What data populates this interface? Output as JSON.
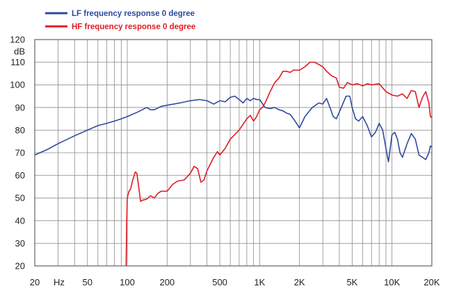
{
  "chart_data": {
    "type": "line",
    "title": "",
    "xlabel": "Hz",
    "ylabel": "dB",
    "x_scale": "log",
    "xlim": [
      20,
      20000
    ],
    "ylim": [
      20,
      120
    ],
    "grid": true,
    "legend_position": "top-left",
    "x_ticks": [
      {
        "value": 20,
        "label": "20"
      },
      {
        "value": 50,
        "label": "50"
      },
      {
        "value": 100,
        "label": "100"
      },
      {
        "value": 200,
        "label": "200"
      },
      {
        "value": 500,
        "label": "500"
      },
      {
        "value": 1000,
        "label": "1K"
      },
      {
        "value": 2000,
        "label": "2K"
      },
      {
        "value": 5000,
        "label": "5K"
      },
      {
        "value": 10000,
        "label": "10K"
      },
      {
        "value": 20000,
        "label": "20K"
      }
    ],
    "y_ticks": [
      20,
      30,
      40,
      50,
      60,
      70,
      80,
      90,
      100,
      110,
      120
    ],
    "series": [
      {
        "name": "LF frequency response 0 degree",
        "color": "#2e4a9e",
        "points": [
          [
            20,
            69
          ],
          [
            25,
            71.5
          ],
          [
            30,
            74
          ],
          [
            40,
            77.5
          ],
          [
            50,
            80
          ],
          [
            60,
            82
          ],
          [
            70,
            83
          ],
          [
            80,
            84
          ],
          [
            90,
            85
          ],
          [
            100,
            86
          ],
          [
            120,
            88
          ],
          [
            140,
            90
          ],
          [
            150,
            89
          ],
          [
            160,
            89
          ],
          [
            180,
            90.5
          ],
          [
            200,
            91
          ],
          [
            250,
            92
          ],
          [
            300,
            93
          ],
          [
            350,
            93.5
          ],
          [
            400,
            93
          ],
          [
            450,
            91.5
          ],
          [
            500,
            93
          ],
          [
            550,
            92.5
          ],
          [
            600,
            94.5
          ],
          [
            650,
            95
          ],
          [
            700,
            93.5
          ],
          [
            750,
            92
          ],
          [
            800,
            94
          ],
          [
            850,
            93
          ],
          [
            900,
            94
          ],
          [
            950,
            93.5
          ],
          [
            1000,
            93.5
          ],
          [
            1100,
            90
          ],
          [
            1200,
            89.5
          ],
          [
            1300,
            90
          ],
          [
            1400,
            89
          ],
          [
            1500,
            88.5
          ],
          [
            1600,
            87.5
          ],
          [
            1700,
            87
          ],
          [
            1800,
            85
          ],
          [
            1900,
            83
          ],
          [
            2000,
            81
          ],
          [
            2200,
            86
          ],
          [
            2500,
            90
          ],
          [
            2800,
            92
          ],
          [
            3000,
            91.5
          ],
          [
            3200,
            94
          ],
          [
            3400,
            90
          ],
          [
            3600,
            86
          ],
          [
            3800,
            85
          ],
          [
            4000,
            88
          ],
          [
            4500,
            95
          ],
          [
            4800,
            95
          ],
          [
            5000,
            90
          ],
          [
            5300,
            85
          ],
          [
            5600,
            84
          ],
          [
            6000,
            86
          ],
          [
            6500,
            82
          ],
          [
            7000,
            77
          ],
          [
            7500,
            79
          ],
          [
            8000,
            83
          ],
          [
            8500,
            80
          ],
          [
            9000,
            72
          ],
          [
            9400,
            66
          ],
          [
            9700,
            72
          ],
          [
            10000,
            78
          ],
          [
            10500,
            79
          ],
          [
            11000,
            76
          ],
          [
            11500,
            70
          ],
          [
            12000,
            68
          ],
          [
            13000,
            74
          ],
          [
            14000,
            78.5
          ],
          [
            15000,
            76
          ],
          [
            16000,
            69
          ],
          [
            17000,
            68
          ],
          [
            18000,
            67
          ],
          [
            19000,
            70
          ],
          [
            19500,
            73
          ],
          [
            20000,
            72.5
          ]
        ]
      },
      {
        "name": "HF frequency response 0 degree",
        "color": "#e01b24",
        "points": [
          [
            98,
            20
          ],
          [
            99,
            40
          ],
          [
            100,
            50
          ],
          [
            103,
            53
          ],
          [
            106,
            54
          ],
          [
            110,
            58
          ],
          [
            115,
            61.5
          ],
          [
            118,
            61
          ],
          [
            122,
            55
          ],
          [
            126,
            48.5
          ],
          [
            130,
            49
          ],
          [
            140,
            49.5
          ],
          [
            150,
            51
          ],
          [
            160,
            50
          ],
          [
            170,
            52
          ],
          [
            180,
            53
          ],
          [
            200,
            53
          ],
          [
            220,
            56
          ],
          [
            240,
            57.5
          ],
          [
            270,
            58
          ],
          [
            300,
            61
          ],
          [
            320,
            64
          ],
          [
            340,
            63
          ],
          [
            360,
            57
          ],
          [
            380,
            58
          ],
          [
            400,
            62
          ],
          [
            450,
            68
          ],
          [
            480,
            70.5
          ],
          [
            500,
            69
          ],
          [
            550,
            72
          ],
          [
            600,
            76
          ],
          [
            700,
            80
          ],
          [
            800,
            85
          ],
          [
            850,
            86.5
          ],
          [
            900,
            84
          ],
          [
            950,
            86
          ],
          [
            1000,
            89
          ],
          [
            1050,
            90
          ],
          [
            1100,
            92
          ],
          [
            1200,
            97
          ],
          [
            1300,
            101
          ],
          [
            1400,
            103
          ],
          [
            1500,
            106
          ],
          [
            1600,
            106
          ],
          [
            1700,
            105.5
          ],
          [
            1800,
            106.5
          ],
          [
            2000,
            106.5
          ],
          [
            2200,
            108
          ],
          [
            2400,
            110
          ],
          [
            2600,
            110
          ],
          [
            2800,
            109
          ],
          [
            3000,
            108
          ],
          [
            3200,
            106
          ],
          [
            3500,
            104
          ],
          [
            3800,
            103
          ],
          [
            4000,
            99
          ],
          [
            4300,
            98.5
          ],
          [
            4600,
            101
          ],
          [
            5000,
            100
          ],
          [
            5500,
            100.5
          ],
          [
            6000,
            99.5
          ],
          [
            6500,
            100.5
          ],
          [
            7000,
            100
          ],
          [
            8000,
            100.5
          ],
          [
            9000,
            97
          ],
          [
            10000,
            95.5
          ],
          [
            11000,
            95
          ],
          [
            12000,
            96
          ],
          [
            13000,
            94
          ],
          [
            14000,
            97.5
          ],
          [
            15000,
            97
          ],
          [
            16000,
            90
          ],
          [
            17000,
            94.5
          ],
          [
            18000,
            97
          ],
          [
            19000,
            92
          ],
          [
            19500,
            86
          ],
          [
            20000,
            85.5
          ]
        ]
      }
    ]
  }
}
